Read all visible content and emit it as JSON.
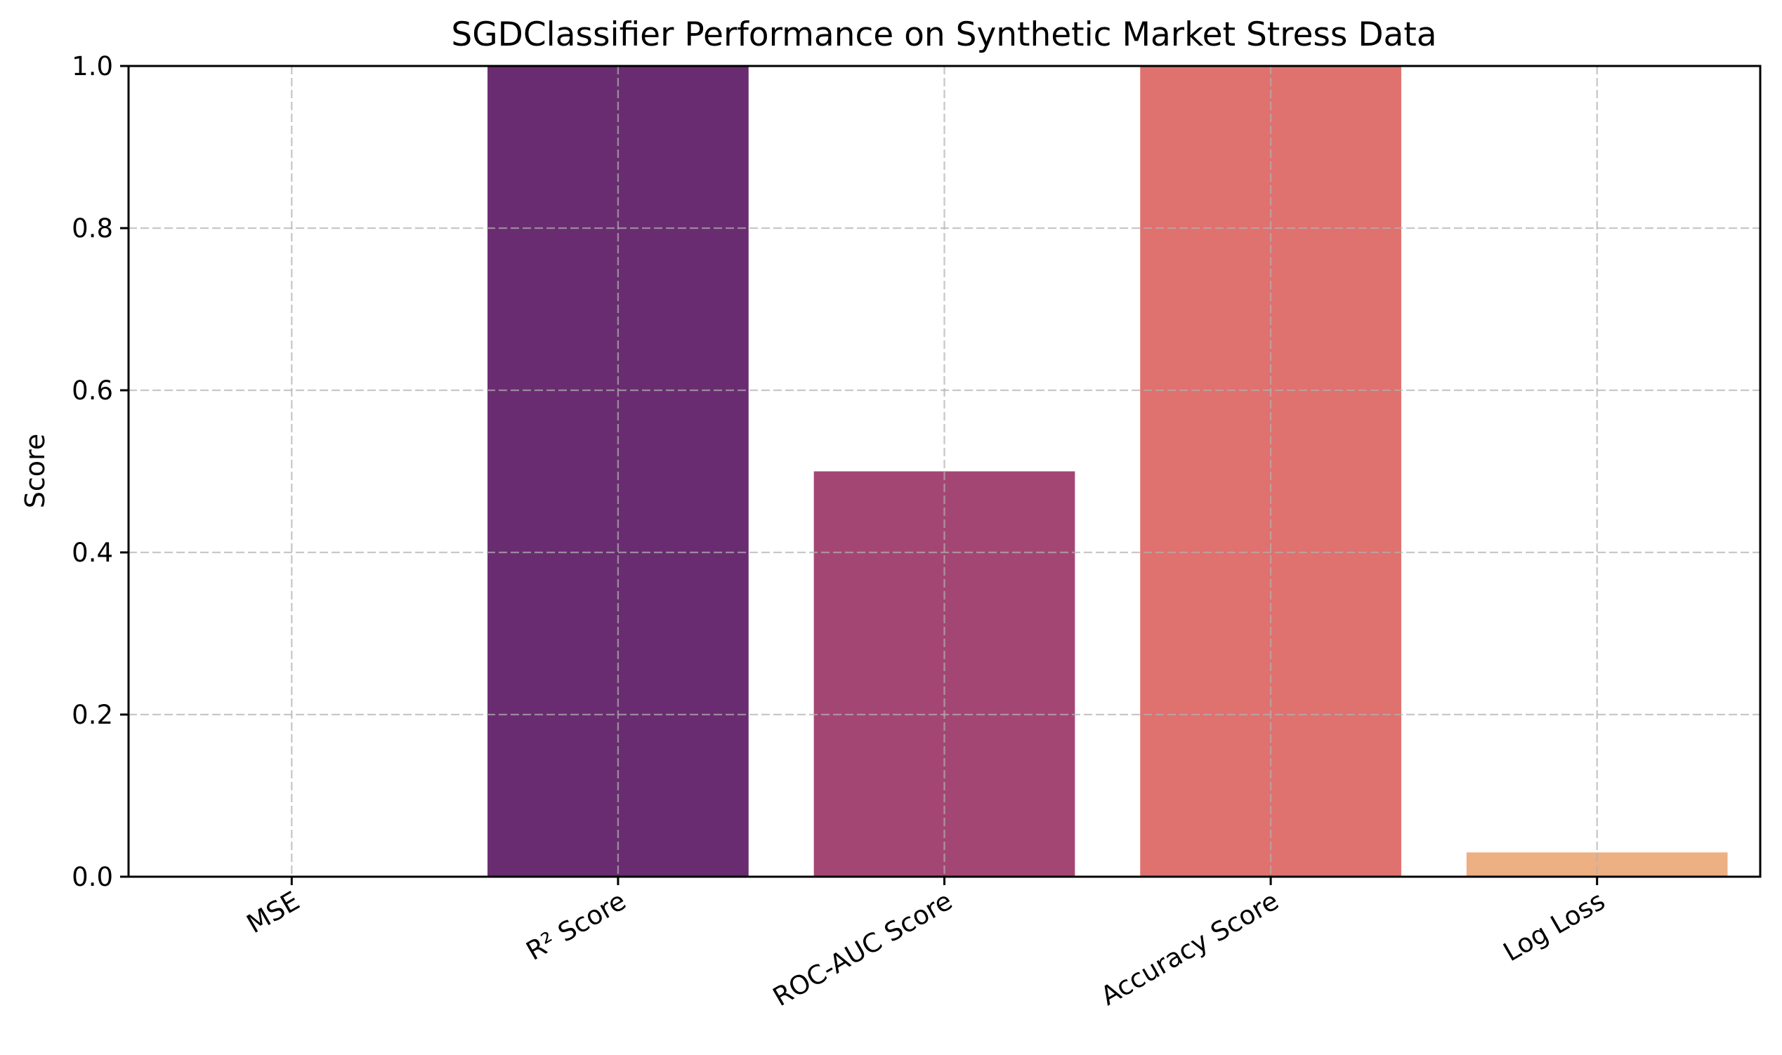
{
  "chart_data": {
    "type": "bar",
    "title": "SGDClassifier Performance on Synthetic Market Stress Data",
    "xlabel": "",
    "ylabel": "Score",
    "categories": [
      "MSE",
      "R² Score",
      "ROC-AUC Score",
      "Accuracy Score",
      "Log Loss"
    ],
    "values": [
      0.0,
      1.0,
      0.5,
      1.0,
      0.03
    ],
    "colors": [
      "#3b0f70",
      "#6a2c70",
      "#a44674",
      "#df716f",
      "#edb083"
    ],
    "ylim": [
      0,
      1
    ],
    "yticks": [
      "0.0",
      "0.2",
      "0.4",
      "0.6",
      "0.8",
      "1.0"
    ],
    "grid": true,
    "x_tick_rotation": 30
  }
}
